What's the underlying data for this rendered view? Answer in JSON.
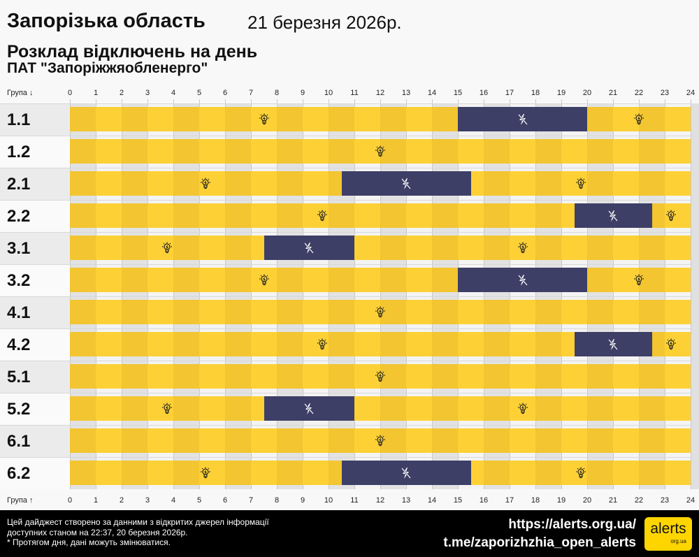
{
  "header": {
    "region": "Запорізька область",
    "date": "21 березня 2026р.",
    "subtitle": "Розклад відключень на день",
    "company": "ПАТ \"Запоріжжяобленерго\""
  },
  "axis": {
    "group_label_top": "Група ↓",
    "group_label_bottom": "Група ↑",
    "hours": [
      "0",
      "1",
      "2",
      "3",
      "4",
      "5",
      "6",
      "7",
      "8",
      "9",
      "10",
      "11",
      "12",
      "13",
      "14",
      "15",
      "16",
      "17",
      "18",
      "19",
      "20",
      "21",
      "22",
      "23",
      "24"
    ]
  },
  "colors": {
    "power_on_even": "#f2c531",
    "power_on_odd": "#fdd135",
    "power_off": "#3d3f66",
    "background": "#f8f8f8"
  },
  "icons": {
    "power_on": "lightbulb-icon",
    "power_off": "no-power-bolt-icon"
  },
  "groups": [
    {
      "name": "1.1",
      "outages": [
        [
          15,
          20
        ]
      ]
    },
    {
      "name": "1.2",
      "outages": []
    },
    {
      "name": "2.1",
      "outages": [
        [
          10.5,
          15.5
        ]
      ]
    },
    {
      "name": "2.2",
      "outages": [
        [
          19.5,
          22.5
        ]
      ]
    },
    {
      "name": "3.1",
      "outages": [
        [
          7.5,
          11
        ]
      ]
    },
    {
      "name": "3.2",
      "outages": [
        [
          15,
          20
        ]
      ]
    },
    {
      "name": "4.1",
      "outages": []
    },
    {
      "name": "4.2",
      "outages": [
        [
          19.5,
          22.5
        ]
      ]
    },
    {
      "name": "5.1",
      "outages": []
    },
    {
      "name": "5.2",
      "outages": [
        [
          7.5,
          11
        ]
      ]
    },
    {
      "name": "6.1",
      "outages": []
    },
    {
      "name": "6.2",
      "outages": [
        [
          10.5,
          15.5
        ]
      ]
    }
  ],
  "footer": {
    "line1": "Цей дайджест створено за данними з відкритих джерел інформації",
    "line2": "доступних станом на 22:37, 20 березня 2026р.",
    "line3": "* Протягом дня, дані можуть змінюватися.",
    "site": "https://alerts.org.ua/",
    "telegram": "t.me/zaporizhzhia_open_alerts",
    "logo_text": "alerts",
    "logo_sub": "org.ua"
  }
}
